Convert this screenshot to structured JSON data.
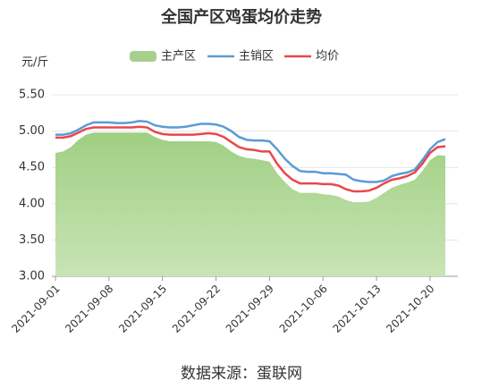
{
  "chart_data": {
    "type": "line",
    "title": "全国产区鸡蛋均价走势",
    "y_unit": "元/斤",
    "source": "数据来源：蛋联网",
    "categories": [
      "2021-09-01",
      null,
      null,
      null,
      null,
      null,
      null,
      "2021-09-08",
      null,
      null,
      null,
      null,
      null,
      null,
      "2021-09-15",
      null,
      null,
      null,
      null,
      null,
      null,
      "2021-09-22",
      null,
      null,
      null,
      null,
      null,
      null,
      "2021-09-29",
      null,
      null,
      null,
      null,
      null,
      null,
      "2021-10-06",
      null,
      null,
      null,
      null,
      null,
      null,
      "2021-10-13",
      null,
      null,
      null,
      null,
      null,
      null,
      "2021-10-20",
      null,
      null
    ],
    "series": [
      {
        "name": "主产区",
        "color": "#a8d08d",
        "kind": "area",
        "values": [
          4.7,
          4.72,
          4.78,
          4.88,
          4.95,
          4.98,
          4.98,
          4.98,
          4.98,
          4.98,
          4.98,
          4.98,
          4.98,
          4.92,
          4.88,
          4.86,
          4.86,
          4.86,
          4.86,
          4.86,
          4.86,
          4.85,
          4.8,
          4.72,
          4.66,
          4.63,
          4.62,
          4.6,
          4.58,
          4.42,
          4.3,
          4.2,
          4.15,
          4.15,
          4.15,
          4.13,
          4.12,
          4.1,
          4.05,
          4.02,
          4.02,
          4.03,
          4.08,
          4.15,
          4.22,
          4.26,
          4.29,
          4.33,
          4.45,
          4.6,
          4.67,
          4.66
        ]
      },
      {
        "name": "主销区",
        "color": "#5b9bd5",
        "kind": "line",
        "values": [
          4.95,
          4.95,
          4.97,
          5.02,
          5.08,
          5.12,
          5.12,
          5.12,
          5.11,
          5.11,
          5.12,
          5.14,
          5.13,
          5.08,
          5.06,
          5.05,
          5.05,
          5.06,
          5.08,
          5.1,
          5.1,
          5.09,
          5.06,
          5.0,
          4.92,
          4.88,
          4.87,
          4.87,
          4.86,
          4.75,
          4.62,
          4.52,
          4.45,
          4.44,
          4.44,
          4.42,
          4.42,
          4.41,
          4.4,
          4.33,
          4.31,
          4.3,
          4.3,
          4.32,
          4.38,
          4.41,
          4.43,
          4.47,
          4.6,
          4.75,
          4.85,
          4.89
        ]
      },
      {
        "name": "均价",
        "color": "#e8484a",
        "kind": "line",
        "values": [
          4.91,
          4.91,
          4.93,
          4.98,
          5.03,
          5.05,
          5.05,
          5.05,
          5.05,
          5.05,
          5.05,
          5.06,
          5.05,
          4.99,
          4.96,
          4.95,
          4.95,
          4.95,
          4.95,
          4.96,
          4.97,
          4.96,
          4.92,
          4.85,
          4.78,
          4.75,
          4.74,
          4.72,
          4.72,
          4.55,
          4.42,
          4.33,
          4.28,
          4.28,
          4.28,
          4.27,
          4.27,
          4.25,
          4.2,
          4.17,
          4.17,
          4.18,
          4.22,
          4.28,
          4.33,
          4.35,
          4.38,
          4.43,
          4.55,
          4.7,
          4.78,
          4.79
        ]
      }
    ],
    "ylim": [
      3,
      5.5
    ],
    "yticks": [
      {
        "value": 3,
        "label": "3.00"
      },
      {
        "value": 3.5,
        "label": "3.50"
      },
      {
        "value": 4,
        "label": "4.00"
      },
      {
        "value": 4.5,
        "label": "4.50"
      },
      {
        "value": 5,
        "label": "5.00"
      },
      {
        "value": 5.5,
        "label": "5.50"
      }
    ],
    "grid": true
  }
}
